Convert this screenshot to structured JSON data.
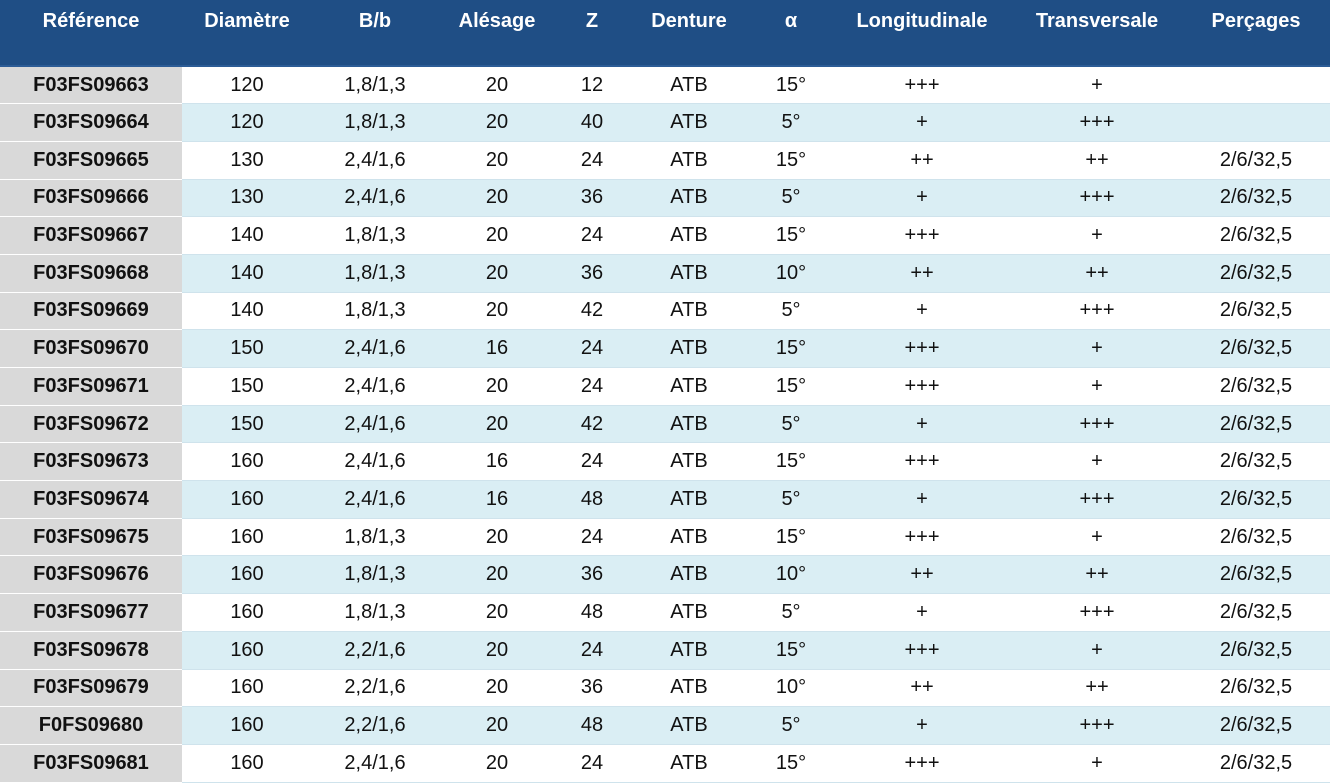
{
  "columns": [
    "Référence",
    "Diamètre",
    "B/b",
    "Alésage",
    "Z",
    "Denture",
    "α",
    "Longitudinale",
    "Transversale",
    "Perçages"
  ],
  "rows": [
    [
      "F03FS09663",
      "120",
      "1,8/1,3",
      "20",
      "12",
      "ATB",
      "15°",
      "+++",
      "+",
      ""
    ],
    [
      "F03FS09664",
      "120",
      "1,8/1,3",
      "20",
      "40",
      "ATB",
      "5°",
      "+",
      "+++",
      ""
    ],
    [
      "F03FS09665",
      "130",
      "2,4/1,6",
      "20",
      "24",
      "ATB",
      "15°",
      "++",
      "++",
      "2/6/32,5"
    ],
    [
      "F03FS09666",
      "130",
      "2,4/1,6",
      "20",
      "36",
      "ATB",
      "5°",
      "+",
      "+++",
      "2/6/32,5"
    ],
    [
      "F03FS09667",
      "140",
      "1,8/1,3",
      "20",
      "24",
      "ATB",
      "15°",
      "+++",
      "+",
      "2/6/32,5"
    ],
    [
      "F03FS09668",
      "140",
      "1,8/1,3",
      "20",
      "36",
      "ATB",
      "10°",
      "++",
      "++",
      "2/6/32,5"
    ],
    [
      "F03FS09669",
      "140",
      "1,8/1,3",
      "20",
      "42",
      "ATB",
      "5°",
      "+",
      "+++",
      "2/6/32,5"
    ],
    [
      "F03FS09670",
      "150",
      "2,4/1,6",
      "16",
      "24",
      "ATB",
      "15°",
      "+++",
      "+",
      "2/6/32,5"
    ],
    [
      "F03FS09671",
      "150",
      "2,4/1,6",
      "20",
      "24",
      "ATB",
      "15°",
      "+++",
      "+",
      "2/6/32,5"
    ],
    [
      "F03FS09672",
      "150",
      "2,4/1,6",
      "20",
      "42",
      "ATB",
      "5°",
      "+",
      "+++",
      "2/6/32,5"
    ],
    [
      "F03FS09673",
      "160",
      "2,4/1,6",
      "16",
      "24",
      "ATB",
      "15°",
      "+++",
      "+",
      "2/6/32,5"
    ],
    [
      "F03FS09674",
      "160",
      "2,4/1,6",
      "16",
      "48",
      "ATB",
      "5°",
      "+",
      "+++",
      "2/6/32,5"
    ],
    [
      "F03FS09675",
      "160",
      "1,8/1,3",
      "20",
      "24",
      "ATB",
      "15°",
      "+++",
      "+",
      "2/6/32,5"
    ],
    [
      "F03FS09676",
      "160",
      "1,8/1,3",
      "20",
      "36",
      "ATB",
      "10°",
      "++",
      "++",
      "2/6/32,5"
    ],
    [
      "F03FS09677",
      "160",
      "1,8/1,3",
      "20",
      "48",
      "ATB",
      "5°",
      "+",
      "+++",
      "2/6/32,5"
    ],
    [
      "F03FS09678",
      "160",
      "2,2/1,6",
      "20",
      "24",
      "ATB",
      "15°",
      "+++",
      "+",
      "2/6/32,5"
    ],
    [
      "F03FS09679",
      "160",
      "2,2/1,6",
      "20",
      "36",
      "ATB",
      "10°",
      "++",
      "++",
      "2/6/32,5"
    ],
    [
      "F0FS09680",
      "160",
      "2,2/1,6",
      "20",
      "48",
      "ATB",
      "5°",
      "+",
      "+++",
      "2/6/32,5"
    ],
    [
      "F03FS09681",
      "160",
      "2,4/1,6",
      "20",
      "24",
      "ATB",
      "15°",
      "+++",
      "+",
      "2/6/32,5"
    ]
  ],
  "colors": {
    "header_bg": "#1f4e85",
    "header_text": "#ffffff",
    "ref_col_bg": "#d9d9d9",
    "stripe_bg": "#daeef4",
    "row_bg": "#ffffff"
  }
}
